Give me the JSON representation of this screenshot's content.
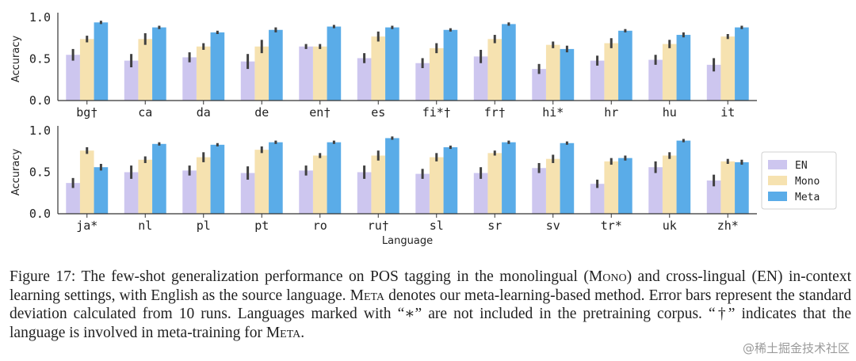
{
  "chart_data": [
    {
      "type": "bar",
      "panel": "top",
      "categories": [
        "bg†",
        "ca",
        "da",
        "de",
        "en†",
        "es",
        "fi*†",
        "fr†",
        "hi*",
        "hr",
        "hu",
        "it"
      ],
      "series": [
        {
          "name": "EN",
          "values": [
            0.55,
            0.48,
            0.52,
            0.47,
            0.65,
            0.51,
            0.45,
            0.53,
            0.38,
            0.48,
            0.49,
            0.43
          ],
          "errors": [
            0.07,
            0.08,
            0.06,
            0.09,
            0.03,
            0.06,
            0.06,
            0.08,
            0.06,
            0.06,
            0.06,
            0.08
          ]
        },
        {
          "name": "Mono",
          "values": [
            0.74,
            0.74,
            0.65,
            0.65,
            0.65,
            0.77,
            0.63,
            0.74,
            0.67,
            0.69,
            0.68,
            0.77
          ],
          "errors": [
            0.04,
            0.07,
            0.04,
            0.08,
            0.03,
            0.06,
            0.06,
            0.05,
            0.04,
            0.06,
            0.05,
            0.03
          ]
        },
        {
          "name": "Meta",
          "values": [
            0.94,
            0.88,
            0.82,
            0.85,
            0.89,
            0.88,
            0.85,
            0.92,
            0.62,
            0.84,
            0.79,
            0.88
          ],
          "errors": [
            0.02,
            0.02,
            0.02,
            0.03,
            0.02,
            0.02,
            0.02,
            0.02,
            0.04,
            0.02,
            0.03,
            0.02
          ]
        }
      ],
      "xlabel": "",
      "ylabel": "Accuracy",
      "ylim": [
        0,
        1.0
      ],
      "yticks": [
        "0.0",
        "0.5",
        "1.0"
      ]
    },
    {
      "type": "bar",
      "panel": "bottom",
      "categories": [
        "ja*",
        "nl",
        "pl",
        "pt",
        "ro",
        "ru†",
        "sl",
        "sr",
        "sv",
        "tr*",
        "uk",
        "zh*"
      ],
      "series": [
        {
          "name": "EN",
          "values": [
            0.37,
            0.5,
            0.52,
            0.49,
            0.52,
            0.5,
            0.48,
            0.49,
            0.55,
            0.36,
            0.56,
            0.4
          ],
          "errors": [
            0.06,
            0.08,
            0.06,
            0.08,
            0.06,
            0.08,
            0.06,
            0.07,
            0.06,
            0.05,
            0.07,
            0.07
          ]
        },
        {
          "name": "Mono",
          "values": [
            0.76,
            0.65,
            0.68,
            0.77,
            0.7,
            0.7,
            0.68,
            0.73,
            0.66,
            0.63,
            0.7,
            0.63
          ],
          "errors": [
            0.04,
            0.04,
            0.06,
            0.04,
            0.03,
            0.06,
            0.05,
            0.03,
            0.05,
            0.04,
            0.04,
            0.03
          ]
        },
        {
          "name": "Meta",
          "values": [
            0.56,
            0.84,
            0.83,
            0.86,
            0.86,
            0.91,
            0.8,
            0.86,
            0.85,
            0.67,
            0.88,
            0.62
          ],
          "errors": [
            0.04,
            0.02,
            0.02,
            0.02,
            0.02,
            0.02,
            0.02,
            0.02,
            0.02,
            0.03,
            0.02,
            0.03
          ]
        }
      ],
      "xlabel": "Language",
      "ylabel": "Accuracy",
      "ylim": [
        0,
        1.0
      ],
      "yticks": [
        "0.0",
        "0.5",
        "1.0"
      ]
    }
  ],
  "legend": {
    "placement": "right",
    "entries": [
      "EN",
      "Mono",
      "Meta"
    ]
  },
  "colors": {
    "EN": "#cdc6ef",
    "Mono": "#f6e2b0",
    "Meta": "#5aace8",
    "error": "#404040",
    "axis": "#333333"
  },
  "caption": {
    "prefix": "Figure 17: The few-shot generalization performance on POS tagging in the monolingual (",
    "mono_word": "Mono",
    "mid1": ") and cross-lingual (EN) in-context learning settings, with English as the source language. ",
    "meta_word1": "Meta",
    "mid2": " denotes our meta-learning-based method. Error bars represent the standard deviation calculated from 10 runs. Languages marked with “∗” are not included in the pretraining corpus. “†” indicates that the language is involved in meta-training for ",
    "meta_word2": "Meta",
    "suffix": "."
  },
  "watermark": "@稀土掘金技术社区"
}
